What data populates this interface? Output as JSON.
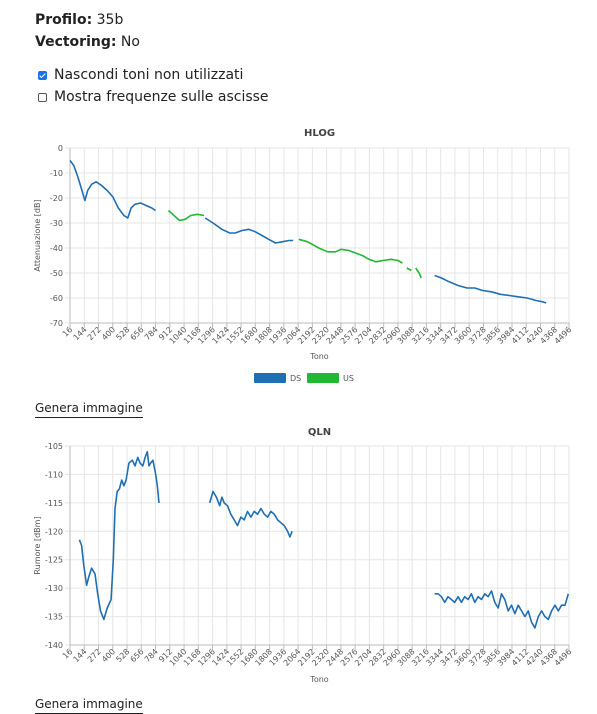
{
  "info": {
    "profile_label": "Profilo:",
    "profile_value": "35b",
    "vectoring_label": "Vectoring:",
    "vectoring_value": "No"
  },
  "options": {
    "hide_unused": "Nascondi toni non utilizzati",
    "hide_unused_checked": true,
    "show_freq": "Mostra frequenze sulle ascisse",
    "show_freq_checked": false
  },
  "generate_label": "Genera immagine",
  "colors": {
    "ds": "#1f6fb4",
    "us": "#22b833"
  },
  "chart_data": [
    {
      "type": "line",
      "title": "HLOG",
      "xlabel": "Tono",
      "ylabel": "Attenuazione [dB]",
      "ylim": [
        -70,
        0
      ],
      "yticks": [
        0,
        -10,
        -20,
        -30,
        -40,
        -50,
        -60,
        -70
      ],
      "categories": [
        "16",
        "144",
        "272",
        "400",
        "528",
        "656",
        "784",
        "912",
        "1040",
        "1168",
        "1296",
        "1424",
        "1552",
        "1680",
        "1808",
        "1936",
        "2064",
        "2192",
        "2320",
        "2448",
        "2576",
        "2704",
        "2832",
        "2960",
        "3088",
        "3216",
        "3344",
        "3472",
        "3600",
        "3728",
        "3856",
        "3984",
        "4112",
        "4240",
        "4368",
        "4496"
      ],
      "legend": [
        "DS",
        "US"
      ],
      "legend_position": "bottom",
      "grid": true,
      "series": [
        {
          "name": "DS",
          "segments": [
            [
              [
                16,
                -5
              ],
              [
                50,
                -7
              ],
              [
                90,
                -12
              ],
              [
                130,
                -18
              ],
              [
                150,
                -21
              ],
              [
                175,
                -17
              ],
              [
                210,
                -14.5
              ],
              [
                250,
                -13.5
              ],
              [
                300,
                -15
              ],
              [
                350,
                -17
              ],
              [
                400,
                -19.5
              ],
              [
                450,
                -24
              ],
              [
                500,
                -27
              ],
              [
                535,
                -28
              ],
              [
                565,
                -24
              ],
              [
                600,
                -22.5
              ],
              [
                650,
                -22
              ],
              [
                700,
                -23
              ],
              [
                750,
                -24
              ],
              [
                784,
                -25
              ]
            ],
            [
              [
                1230,
                -28
              ],
              [
                1300,
                -30
              ],
              [
                1380,
                -32.5
              ],
              [
                1450,
                -34
              ],
              [
                1500,
                -34
              ],
              [
                1560,
                -33
              ],
              [
                1620,
                -32.5
              ],
              [
                1680,
                -33.5
              ],
              [
                1740,
                -35
              ],
              [
                1800,
                -36.5
              ],
              [
                1860,
                -38
              ],
              [
                1920,
                -37.5
              ],
              [
                1980,
                -37
              ],
              [
                2020,
                -37
              ]
            ],
            [
              [
                3290,
                -51
              ],
              [
                3350,
                -52
              ],
              [
                3420,
                -53.5
              ],
              [
                3500,
                -55
              ],
              [
                3580,
                -56
              ],
              [
                3650,
                -56
              ],
              [
                3720,
                -57
              ],
              [
                3800,
                -57.5
              ],
              [
                3880,
                -58.5
              ],
              [
                3960,
                -59
              ],
              [
                4040,
                -59.5
              ],
              [
                4120,
                -60
              ],
              [
                4200,
                -61
              ],
              [
                4260,
                -61.5
              ],
              [
                4290,
                -62
              ]
            ]
          ]
        },
        {
          "name": "US",
          "segments": [
            [
              [
                900,
                -25
              ],
              [
                950,
                -27
              ],
              [
                1000,
                -29
              ],
              [
                1050,
                -28.5
              ],
              [
                1100,
                -27
              ],
              [
                1160,
                -26.5
              ],
              [
                1220,
                -27
              ]
            ],
            [
              [
                2070,
                -36.5
              ],
              [
                2150,
                -37.5
              ],
              [
                2250,
                -40
              ],
              [
                2330,
                -41.5
              ],
              [
                2400,
                -41.5
              ],
              [
                2450,
                -40.5
              ],
              [
                2520,
                -41
              ],
              [
                2580,
                -42
              ],
              [
                2640,
                -43
              ],
              [
                2700,
                -44.5
              ],
              [
                2760,
                -45.5
              ],
              [
                2830,
                -45
              ],
              [
                2900,
                -44.5
              ],
              [
                2960,
                -45
              ],
              [
                3000,
                -46
              ]
            ],
            [
              [
                3040,
                -48
              ],
              [
                3080,
                -49
              ]
            ],
            [
              [
                3120,
                -48
              ],
              [
                3150,
                -50
              ],
              [
                3170,
                -52
              ]
            ]
          ]
        }
      ]
    },
    {
      "type": "line",
      "title": "QLN",
      "xlabel": "Tono",
      "ylabel": "Rumore [dBm]",
      "ylim": [
        -140,
        -105
      ],
      "yticks": [
        -105,
        -110,
        -115,
        -120,
        -125,
        -130,
        -135,
        -140
      ],
      "categories": [
        "16",
        "144",
        "272",
        "400",
        "528",
        "656",
        "784",
        "912",
        "1040",
        "1168",
        "1296",
        "1424",
        "1552",
        "1680",
        "1808",
        "1936",
        "2064",
        "2192",
        "2320",
        "2448",
        "2576",
        "2704",
        "2832",
        "2960",
        "3088",
        "3216",
        "3344",
        "3472",
        "3600",
        "3728",
        "3856",
        "3984",
        "4112",
        "4240",
        "4368",
        "4496"
      ],
      "grid": true,
      "series": [
        {
          "name": "",
          "segments": [
            [
              [
                100,
                -121.5
              ],
              [
                120,
                -122.5
              ],
              [
                140,
                -126
              ],
              [
                165,
                -129.5
              ],
              [
                185,
                -128
              ],
              [
                210,
                -126.5
              ],
              [
                240,
                -127.5
              ],
              [
                265,
                -131
              ],
              [
                290,
                -134
              ],
              [
                320,
                -135.5
              ],
              [
                350,
                -133.5
              ],
              [
                385,
                -132
              ],
              [
                405,
                -125
              ],
              [
                420,
                -116
              ],
              [
                440,
                -113
              ],
              [
                460,
                -112.5
              ],
              [
                480,
                -111
              ],
              [
                500,
                -112
              ],
              [
                520,
                -111
              ],
              [
                545,
                -108
              ],
              [
                575,
                -107.5
              ],
              [
                600,
                -108.5
              ],
              [
                625,
                -107
              ],
              [
                645,
                -108
              ],
              [
                670,
                -108.5
              ],
              [
                690,
                -107
              ],
              [
                710,
                -106
              ],
              [
                725,
                -108.5
              ],
              [
                740,
                -108
              ],
              [
                760,
                -107.5
              ],
              [
                785,
                -110
              ],
              [
                800,
                -112
              ],
              [
                815,
                -115
              ]
            ],
            [
              [
                1270,
                -115
              ],
              [
                1300,
                -113
              ],
              [
                1330,
                -114
              ],
              [
                1360,
                -115.5
              ],
              [
                1380,
                -114
              ],
              [
                1400,
                -115
              ],
              [
                1430,
                -115.5
              ],
              [
                1460,
                -117
              ],
              [
                1490,
                -118
              ],
              [
                1520,
                -119
              ],
              [
                1550,
                -117.5
              ],
              [
                1580,
                -118
              ],
              [
                1610,
                -116.5
              ],
              [
                1640,
                -117.5
              ],
              [
                1670,
                -116.5
              ],
              [
                1700,
                -117
              ],
              [
                1730,
                -116
              ],
              [
                1760,
                -117
              ],
              [
                1790,
                -117.5
              ],
              [
                1820,
                -116.5
              ],
              [
                1850,
                -117
              ],
              [
                1880,
                -118
              ],
              [
                1910,
                -118.5
              ],
              [
                1940,
                -119
              ],
              [
                1970,
                -120
              ],
              [
                1990,
                -121
              ],
              [
                2010,
                -120
              ]
            ],
            [
              [
                3290,
                -131
              ],
              [
                3320,
                -131
              ],
              [
                3350,
                -131.5
              ],
              [
                3380,
                -132.5
              ],
              [
                3410,
                -131.5
              ],
              [
                3440,
                -132
              ],
              [
                3470,
                -132.5
              ],
              [
                3500,
                -131.5
              ],
              [
                3530,
                -132.5
              ],
              [
                3560,
                -131.5
              ],
              [
                3590,
                -132
              ],
              [
                3620,
                -131
              ],
              [
                3650,
                -132.5
              ],
              [
                3680,
                -131.5
              ],
              [
                3710,
                -132
              ],
              [
                3740,
                -131
              ],
              [
                3770,
                -131.5
              ],
              [
                3800,
                -130.5
              ],
              [
                3830,
                -132.5
              ],
              [
                3860,
                -133.5
              ],
              [
                3890,
                -131
              ],
              [
                3920,
                -132
              ],
              [
                3950,
                -134
              ],
              [
                3980,
                -133
              ],
              [
                4010,
                -134.5
              ],
              [
                4040,
                -133
              ],
              [
                4070,
                -134
              ],
              [
                4100,
                -135
              ],
              [
                4130,
                -134
              ],
              [
                4160,
                -136
              ],
              [
                4190,
                -137
              ],
              [
                4220,
                -135
              ],
              [
                4250,
                -134
              ],
              [
                4280,
                -135
              ],
              [
                4310,
                -135.5
              ],
              [
                4340,
                -134
              ],
              [
                4370,
                -133
              ],
              [
                4400,
                -134
              ],
              [
                4430,
                -133
              ],
              [
                4460,
                -133
              ],
              [
                4490,
                -131
              ]
            ]
          ]
        }
      ]
    }
  ]
}
